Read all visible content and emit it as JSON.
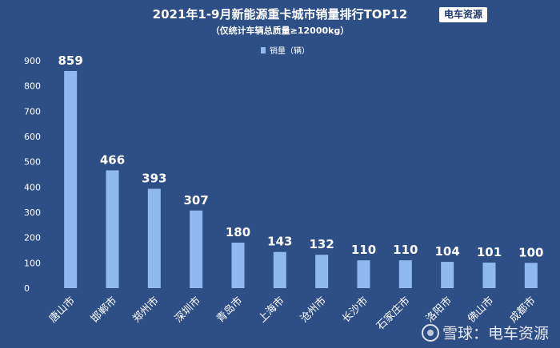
{
  "chart_data": {
    "type": "bar",
    "title": "2021年1-9月新能源重卡城市销量排行TOP12",
    "subtitle": "（仅统计车辆总质量≥12000kg）",
    "legend": {
      "label": "销量（辆）",
      "placement": "top-center"
    },
    "categories": [
      "唐山市",
      "邯郸市",
      "郑州市",
      "深圳市",
      "青岛市",
      "上海市",
      "沧州市",
      "长沙市",
      "石家庄市",
      "洛阳市",
      "佛山市",
      "成都市"
    ],
    "values": [
      859,
      466,
      393,
      307,
      180,
      143,
      132,
      110,
      110,
      104,
      101,
      100
    ],
    "ylim": [
      0,
      900
    ],
    "yticks": [
      0,
      100,
      200,
      300,
      400,
      500,
      600,
      700,
      800,
      900
    ],
    "xlabel": "",
    "ylabel": "",
    "grid": false,
    "data_labels": true
  },
  "badge": {
    "text": "电车资源"
  },
  "watermark": {
    "icon": "snowball-icon",
    "text": "雪球：电车资源"
  },
  "colors": {
    "background": "#2e4f86",
    "bar": "#8fb9ef",
    "text": "#ffffff"
  }
}
